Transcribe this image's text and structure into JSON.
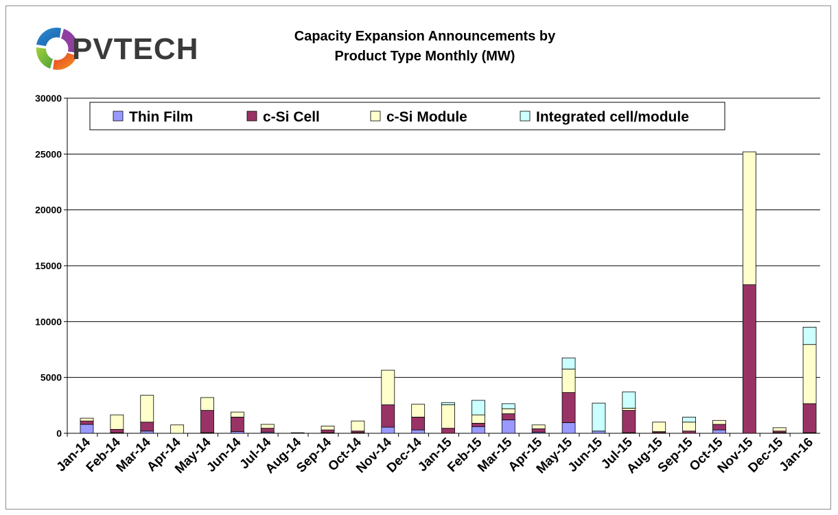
{
  "logo": {
    "brand": "PVTECH"
  },
  "chart_data": {
    "type": "bar",
    "stacked": true,
    "title": "Capacity Expansion Announcements by Product Type Monthly (MW)",
    "title_lines": [
      "Capacity Expansion Announcements by",
      "Product Type Monthly (MW)"
    ],
    "xlabel": "",
    "ylabel": "",
    "ylim": [
      0,
      30000
    ],
    "yticks": [
      0,
      5000,
      10000,
      15000,
      20000,
      25000,
      30000
    ],
    "grid": true,
    "legend_position": "top",
    "categories": [
      "Jan-14",
      "Feb-14",
      "Mar-14",
      "Apr-14",
      "May-14",
      "Jun-14",
      "Jul-14",
      "Aug-14",
      "Sep-14",
      "Oct-14",
      "Nov-14",
      "Dec-14",
      "Jan-15",
      "Feb-15",
      "Mar-15",
      "Apr-15",
      "May-15",
      "Jun-15",
      "Jul-15",
      "Aug-15",
      "Sep-15",
      "Oct-15",
      "Nov-15",
      "Dec-15",
      "Jan-16"
    ],
    "series": [
      {
        "name": "Thin Film",
        "color": "#9999ff",
        "values": [
          800,
          50,
          200,
          0,
          50,
          150,
          100,
          0,
          50,
          50,
          550,
          300,
          0,
          600,
          1200,
          100,
          950,
          200,
          50,
          50,
          0,
          300,
          0,
          50,
          50
        ]
      },
      {
        "name": "c-Si Cell",
        "color": "#993366",
        "values": [
          300,
          300,
          800,
          0,
          2000,
          1300,
          350,
          0,
          250,
          150,
          2000,
          1150,
          450,
          300,
          550,
          300,
          2700,
          0,
          2000,
          100,
          200,
          500,
          13300,
          150,
          2600
        ]
      },
      {
        "name": "c-Si Module",
        "color": "#ffffcc",
        "values": [
          250,
          1300,
          2400,
          750,
          1150,
          450,
          350,
          50,
          350,
          900,
          3100,
          1150,
          2100,
          750,
          450,
          350,
          2100,
          0,
          200,
          850,
          800,
          350,
          11900,
          300,
          5300
        ]
      },
      {
        "name": "Integrated cell/module",
        "color": "#ccffff",
        "values": [
          0,
          0,
          0,
          0,
          0,
          0,
          0,
          0,
          0,
          0,
          0,
          0,
          200,
          1300,
          450,
          0,
          1000,
          2500,
          1450,
          0,
          450,
          0,
          0,
          0,
          1550
        ]
      }
    ]
  }
}
